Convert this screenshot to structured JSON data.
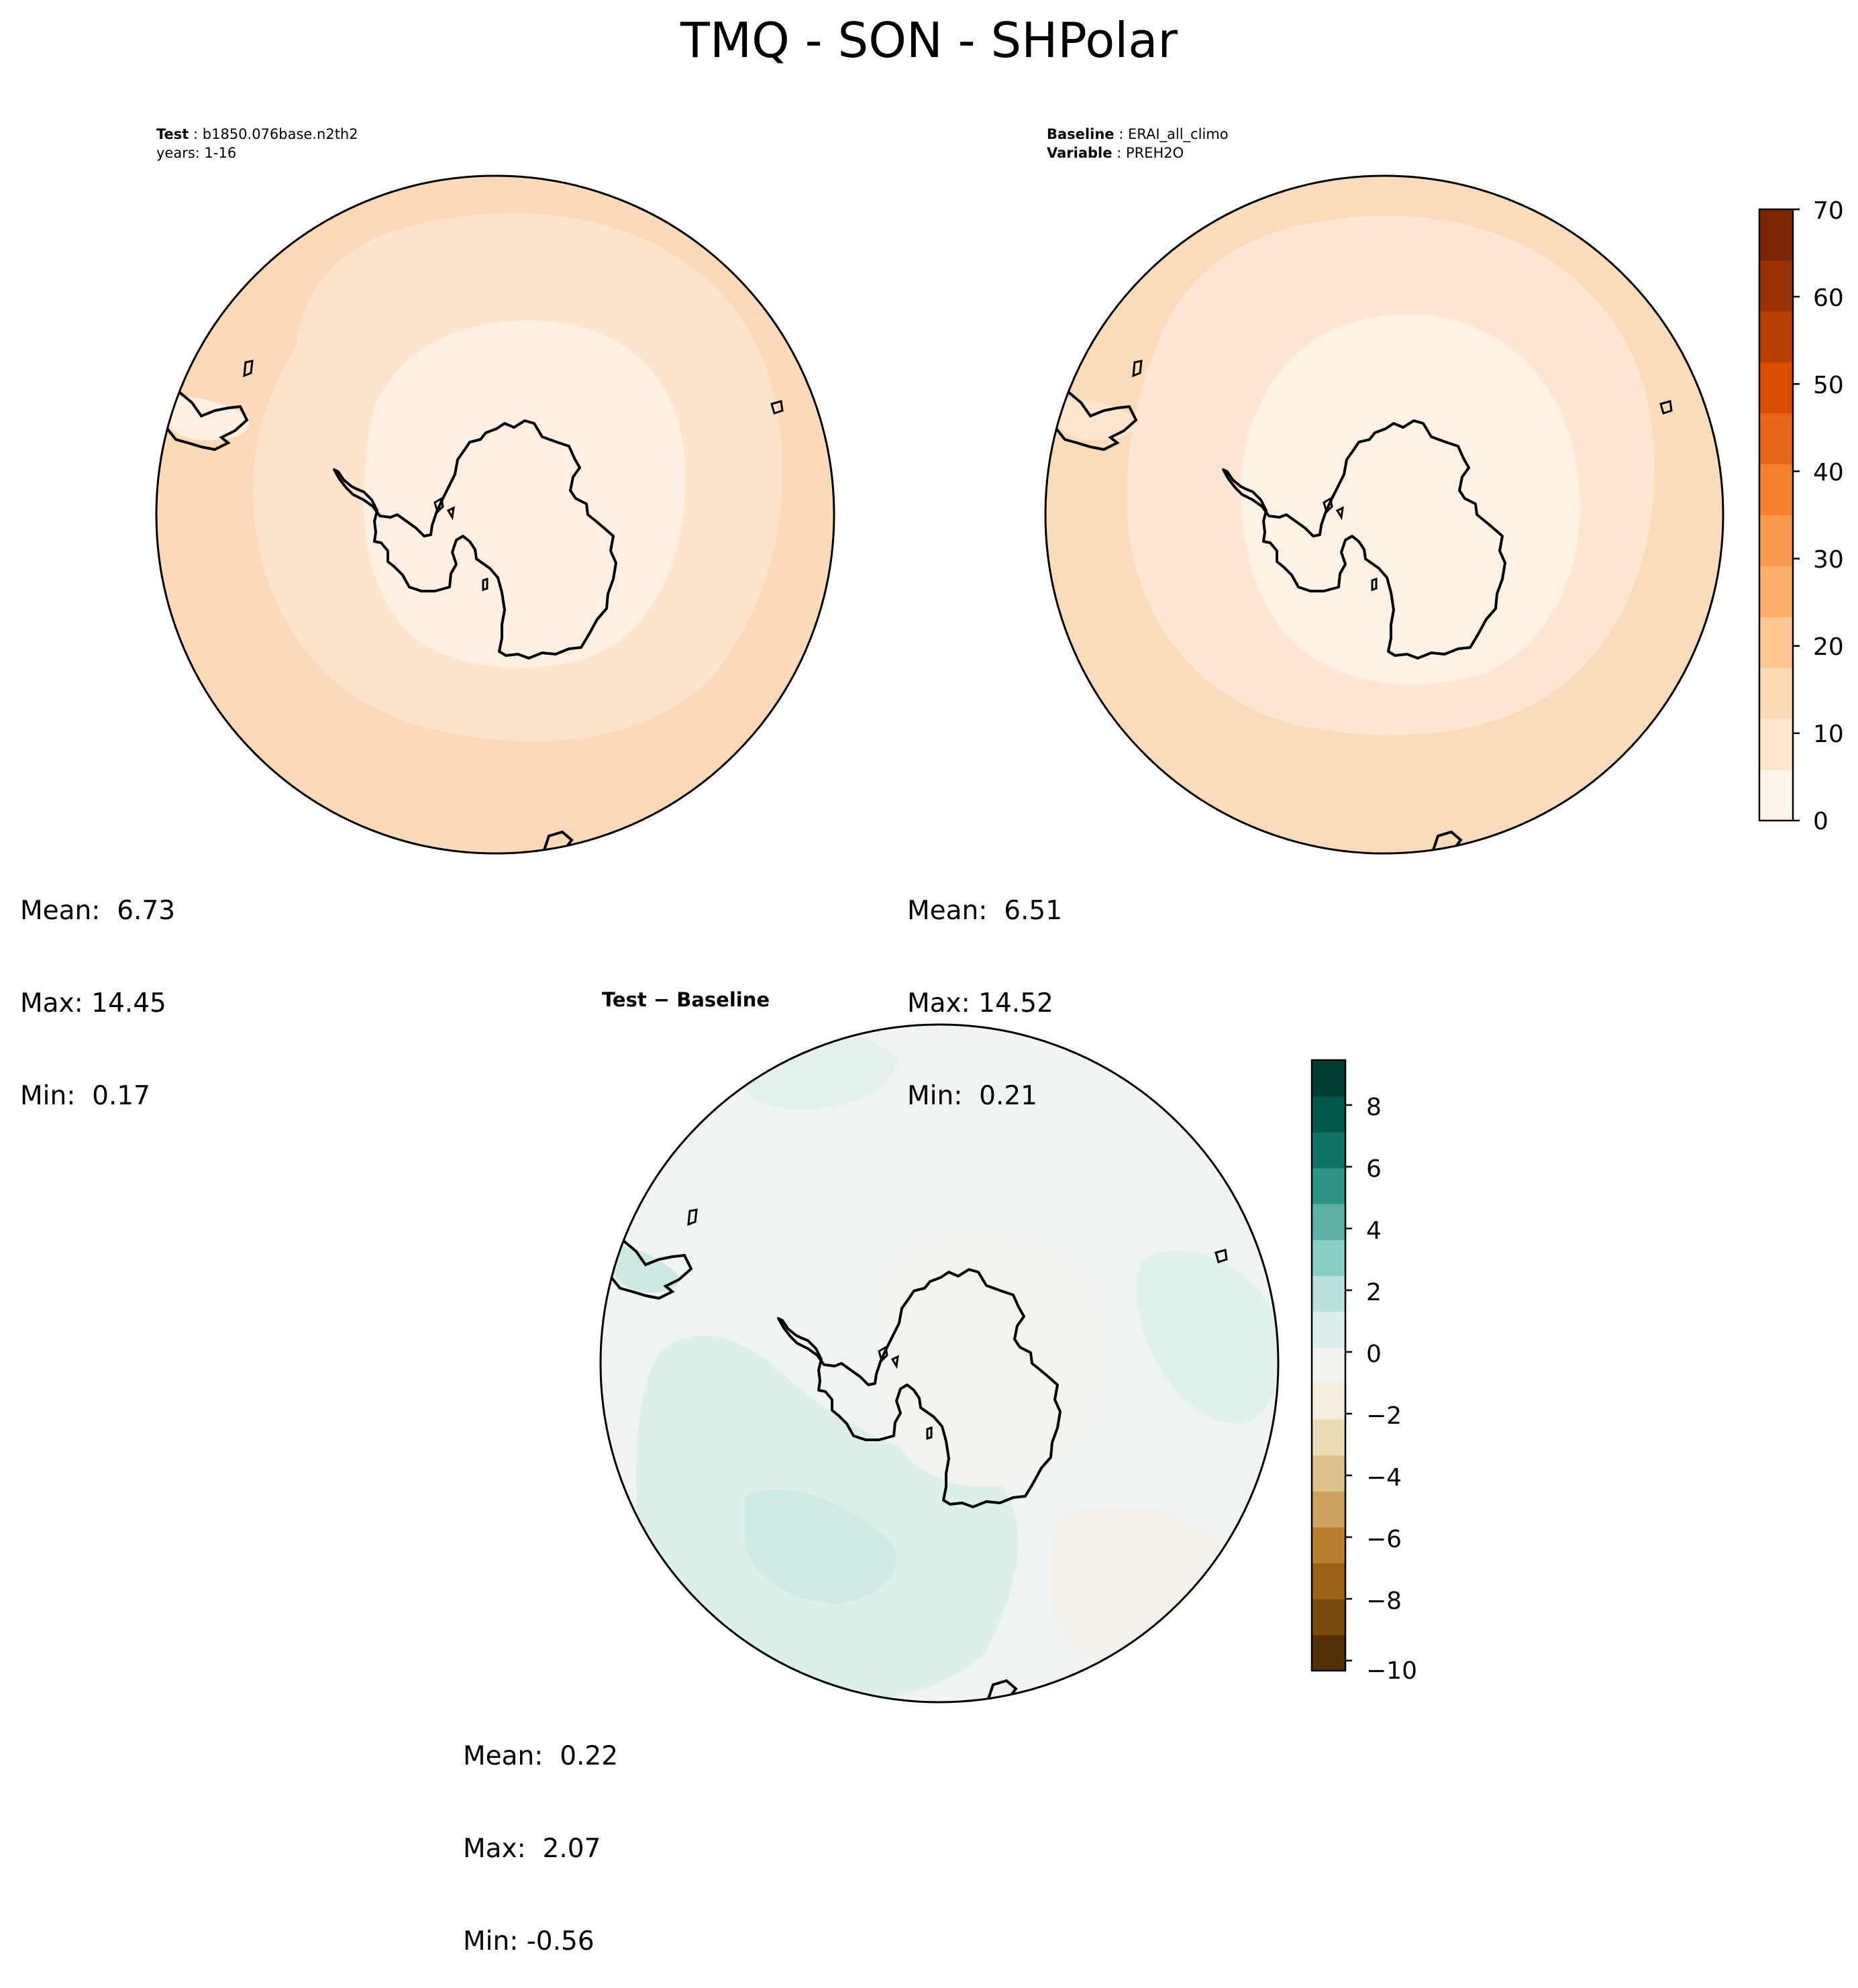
{
  "title": "TMQ - SON - SHPolar",
  "panels": {
    "test": {
      "label": "Test",
      "value": "b1850.076base.n2th2",
      "line2": "years: 1-16",
      "stats": {
        "mean": "Mean:  6.73",
        "max": "Max: 14.45",
        "min": "Min:  0.17"
      }
    },
    "baseline": {
      "label": "Baseline",
      "value": "ERAI_all_climo",
      "line2_label": "Variable",
      "line2_value": "PREH2O",
      "stats": {
        "mean": "Mean:  6.51",
        "max": "Max: 14.52",
        "min": "Min:  0.21"
      }
    },
    "diff": {
      "title": "Test − Baseline",
      "stats": {
        "mean": "Mean:  0.22",
        "max": "Max:  2.07",
        "min": "Min: -0.56"
      }
    }
  },
  "colorbars": {
    "main": {
      "ticks": [
        "0",
        "10",
        "20",
        "30",
        "40",
        "50",
        "60",
        "70"
      ],
      "range": [
        0,
        70
      ],
      "colors": [
        "#fff5eb",
        "#fee6ce",
        "#fdd9b4",
        "#fdc692",
        "#fdae6b",
        "#f9974e",
        "#f4812f",
        "#e6661a",
        "#d94d01",
        "#b83e02",
        "#9a3103",
        "#7f2704"
      ]
    },
    "diff": {
      "ticks": [
        "8",
        "6",
        "4",
        "2",
        "0",
        "−2",
        "−4",
        "−6",
        "−8",
        "−10"
      ],
      "range": [
        -10,
        10
      ],
      "colors": [
        "#543005",
        "#7a4a0c",
        "#9b6215",
        "#b97f2e",
        "#cfa460",
        "#dfc38c",
        "#ecdcb4",
        "#f5eedc",
        "#f2f2ee",
        "#dcefec",
        "#b8e2dc",
        "#8bcfc4",
        "#5db1a6",
        "#30938a",
        "#0f7468",
        "#005749",
        "#003c30"
      ]
    }
  },
  "map_fields": {
    "test": [
      "#fcdab8",
      "#fde5cd",
      "#fdf0e2"
    ],
    "baseline": [
      "#fcdbba",
      "#fde7d2",
      "#fef2e6"
    ],
    "diff_background": "#eff3f2",
    "diff_patches": [
      "#dbefeb",
      "#d4ece6",
      "#f3f1e8"
    ]
  }
}
